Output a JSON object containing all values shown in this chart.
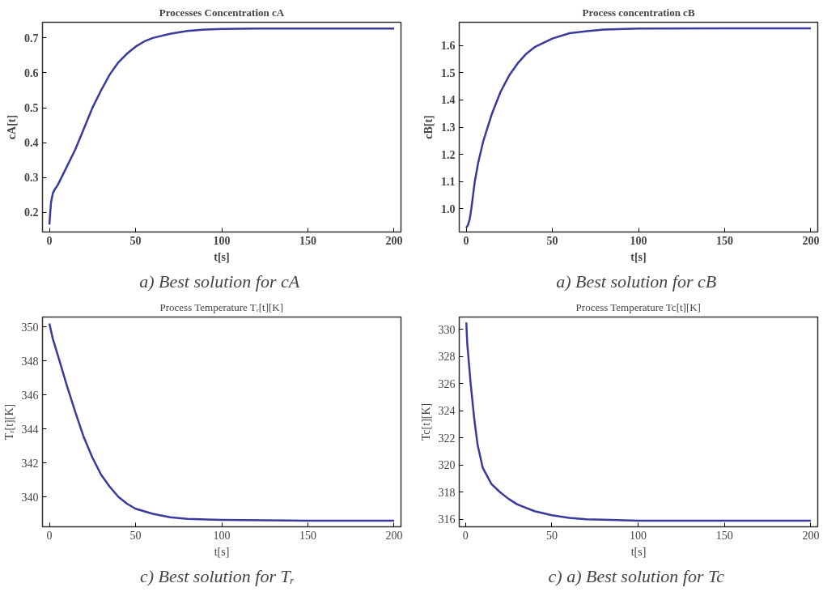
{
  "chart_data": [
    {
      "type": "line",
      "title": "Processes Concentration cA",
      "xlabel": "t[s]",
      "ylabel": "cA[t]",
      "annotations": [
        "a) Best solution  for cA"
      ],
      "x": [
        0,
        0.5,
        1,
        2,
        3,
        5,
        10,
        15,
        20,
        25,
        30,
        35,
        40,
        45,
        50,
        55,
        60,
        70,
        80,
        90,
        100,
        120,
        150,
        200
      ],
      "series": [
        {
          "color": "#3a3a9a",
          "values": [
            0.165,
            0.2,
            0.23,
            0.255,
            0.265,
            0.28,
            0.33,
            0.38,
            0.44,
            0.5,
            0.55,
            0.595,
            0.63,
            0.655,
            0.675,
            0.69,
            0.7,
            0.712,
            0.72,
            0.724,
            0.726,
            0.727,
            0.727,
            0.727
          ]
        }
      ],
      "xlim": [
        -4,
        204
      ],
      "ylim": [
        0.144,
        0.745
      ],
      "xticks": [
        0,
        50,
        100,
        150,
        200
      ],
      "yticks": [
        0.2,
        0.3,
        0.4,
        0.5,
        0.6,
        0.7
      ]
    },
    {
      "type": "line",
      "title": "Process concentration cB",
      "xlabel": "t[s]",
      "ylabel": "cB[t]",
      "annotations": [
        "a) Best solution  for cB"
      ],
      "x": [
        0,
        1,
        2,
        3,
        5,
        7,
        10,
        15,
        20,
        25,
        30,
        35,
        40,
        50,
        60,
        70,
        80,
        100,
        150,
        200
      ],
      "series": [
        {
          "color": "#3a3a9a",
          "values": [
            0.93,
            0.94,
            0.96,
            1.0,
            1.1,
            1.17,
            1.25,
            1.35,
            1.43,
            1.49,
            1.535,
            1.57,
            1.595,
            1.625,
            1.645,
            1.652,
            1.658,
            1.662,
            1.663,
            1.663
          ]
        }
      ],
      "xlim": [
        -4,
        204
      ],
      "ylim": [
        0.915,
        1.685
      ],
      "xticks": [
        0,
        50,
        100,
        150,
        200
      ],
      "yticks": [
        {
          "value": 1.0,
          "label": "1.0"
        },
        1.1,
        1.2,
        1.3,
        1.4,
        1.5,
        1.6
      ]
    },
    {
      "type": "line",
      "title": "Process Temperature Tᵣ[t][K]",
      "xlabel": "t[s]",
      "ylabel": "Tᵣ[t][K]",
      "annotations": [
        "c)  Best solution  for Tᵣ"
      ],
      "x": [
        0,
        2,
        5,
        10,
        15,
        20,
        25,
        30,
        35,
        40,
        45,
        50,
        60,
        70,
        80,
        100,
        150,
        200
      ],
      "series": [
        {
          "color": "#3a3a9a",
          "values": [
            350.2,
            349.3,
            348.3,
            346.6,
            345.0,
            343.5,
            342.3,
            341.3,
            340.6,
            340.0,
            339.6,
            339.3,
            339.0,
            338.8,
            338.7,
            338.65,
            338.6,
            338.6
          ]
        }
      ],
      "xlim": [
        -4,
        204
      ],
      "ylim": [
        338.24,
        350.58
      ],
      "xticks": [
        0,
        50,
        100,
        150,
        200
      ],
      "yticks": [
        340,
        342,
        344,
        346,
        348,
        350
      ]
    },
    {
      "type": "line",
      "title": "Process Temperature Tc[t][K]",
      "xlabel": "t[s]",
      "ylabel": "Tc[t][K]",
      "annotations": [
        "c) a) Best solution  for Tc"
      ],
      "x": [
        0.5,
        1,
        2,
        3,
        5,
        7,
        10,
        15,
        20,
        25,
        30,
        40,
        50,
        60,
        70,
        100,
        150,
        200
      ],
      "series": [
        {
          "color": "#3a3a9a",
          "values": [
            330.5,
            329,
            327.5,
            326,
            323.5,
            321.5,
            319.8,
            318.6,
            318.0,
            317.5,
            317.1,
            316.6,
            316.3,
            316.1,
            316.0,
            315.9,
            315.9,
            315.9
          ]
        }
      ],
      "xlim": [
        -3.6,
        204
      ],
      "ylim": [
        315.45,
        330.9
      ],
      "xticks": [
        0,
        50,
        100,
        150,
        200
      ],
      "yticks": [
        316,
        318,
        320,
        322,
        324,
        326,
        328,
        330
      ]
    }
  ]
}
